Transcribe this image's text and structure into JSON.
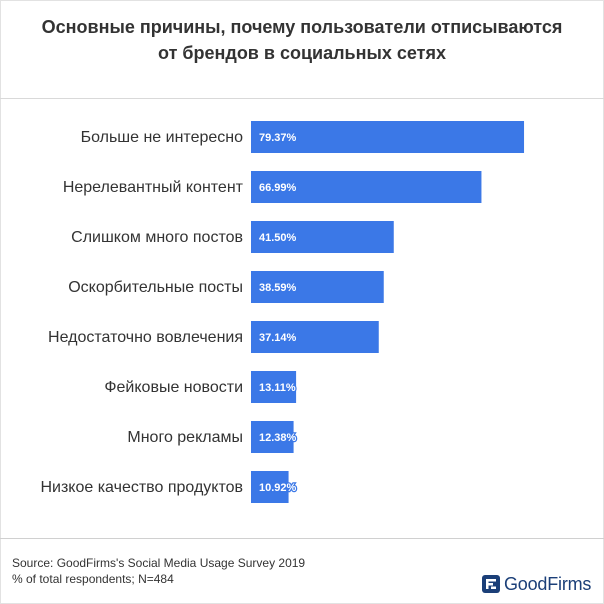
{
  "chart_data": {
    "type": "bar",
    "orientation": "horizontal",
    "title": "Основные причины, почему пользователи отписываются от брендов в социальных сетях",
    "title_lines": [
      "Основные причины, почему пользователи отписываются",
      "от брендов в социальных сетях"
    ],
    "categories": [
      "Больше не интересно",
      "Нерелевантный контент",
      "Слишком много постов",
      "Оскорбительные посты",
      "Недостаточно вовлечения",
      "Фейковые новости",
      "Много рекламы",
      "Низкое качество продуктов"
    ],
    "values": [
      79.37,
      66.99,
      41.5,
      38.59,
      37.14,
      13.11,
      12.38,
      10.92
    ],
    "data_labels": [
      "79.37%",
      "66.99%",
      "41.50%",
      "38.59%",
      "37.14%",
      "13.11%",
      "12.38%",
      "10.92%"
    ],
    "bar_color": "#3b78e7",
    "grid": false,
    "legend": "none"
  },
  "footer": {
    "source": "Source: GoodFirms's Social Media Usage Survey 2019",
    "note": "% of total respondents; N=484"
  },
  "logo": {
    "text": "GoodFirms",
    "icon": "goodfirms-logo-icon",
    "color": "#1b3f78"
  }
}
